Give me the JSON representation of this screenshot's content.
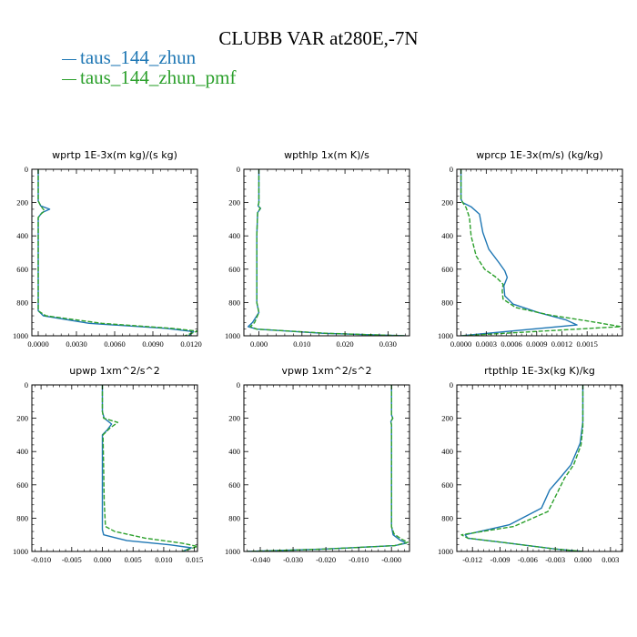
{
  "title": "CLUBB VAR at280E,-7N",
  "legend": [
    {
      "label": "taus_144_zhun",
      "color": "#1f77b4"
    },
    {
      "label": "taus_144_zhun_pmf",
      "color": "#2ca02c"
    }
  ],
  "chart_data": [
    {
      "type": "line",
      "title": "wprtp  1E-3x(m kg)/(s kg)",
      "xlim": [
        -0.0005,
        0.0125
      ],
      "xticks": [
        0.0,
        0.003,
        0.006,
        0.009,
        0.012
      ],
      "xtick_labels": [
        "0.0000",
        "0.0030",
        "0.0060",
        "0.0090",
        "0.0120"
      ],
      "ylim": [
        1000,
        0
      ],
      "yticks": [
        0,
        200,
        400,
        600,
        800,
        1000
      ],
      "series": [
        {
          "name": "taus_144_zhun",
          "x": [
            0.0,
            0.0,
            0.0002,
            0.0009,
            0.0003,
            0.0,
            0.0,
            0.0,
            0.0,
            0.0,
            0.0,
            0.0004,
            0.004,
            0.01,
            0.0122,
            0.0118
          ],
          "y": [
            0,
            190,
            220,
            240,
            260,
            290,
            450,
            560,
            700,
            800,
            850,
            880,
            925,
            955,
            975,
            1000
          ]
        },
        {
          "name": "taus_144_zhun_pmf",
          "x": [
            0.0,
            0.0,
            0.0002,
            0.0005,
            0.0002,
            0.0,
            0.0,
            0.0,
            0.0,
            0.0,
            0.0,
            0.0006,
            0.005,
            0.0105,
            0.0125,
            0.0115
          ],
          "y": [
            0,
            190,
            220,
            250,
            270,
            290,
            450,
            560,
            700,
            800,
            850,
            880,
            925,
            955,
            972,
            1000
          ]
        }
      ]
    },
    {
      "type": "line",
      "title": "wpthlp  1x(m K)/s",
      "xlim": [
        -0.0035,
        0.035
      ],
      "xticks": [
        0.0,
        0.01,
        0.02,
        0.03
      ],
      "xtick_labels": [
        "0.000",
        "0.010",
        "0.020",
        "0.030"
      ],
      "ylim": [
        1000,
        0
      ],
      "yticks": [
        0,
        200,
        400,
        600,
        800,
        1000
      ],
      "series": [
        {
          "name": "taus_144_zhun",
          "x": [
            0.0,
            0.0,
            -0.0002,
            0.0004,
            -0.0003,
            -0.0005,
            -0.0005,
            -0.0005,
            0.0,
            -0.0015,
            -0.0025,
            -0.0005,
            0.015,
            0.034
          ],
          "y": [
            0,
            200,
            220,
            235,
            260,
            400,
            600,
            800,
            860,
            920,
            945,
            960,
            985,
            1000
          ]
        },
        {
          "name": "taus_144_zhun_pmf",
          "x": [
            0.0,
            0.0,
            -0.0002,
            0.0003,
            -0.0003,
            -0.0005,
            -0.0005,
            -0.0005,
            0.0,
            -0.001,
            -0.002,
            -0.0005,
            0.016,
            0.034
          ],
          "y": [
            0,
            200,
            220,
            235,
            260,
            400,
            600,
            800,
            860,
            920,
            945,
            960,
            985,
            1000
          ]
        }
      ]
    },
    {
      "type": "line",
      "title": "wprcp  1E-3x(m/s) (kg/kg)",
      "xlim": [
        -5e-05,
        0.00192
      ],
      "xticks": [
        0.0,
        0.0003,
        0.0006,
        0.0009,
        0.0012,
        0.0015
      ],
      "xtick_labels": [
        "0.0000",
        "0.0003",
        "0.0006",
        "0.0009",
        "0.0012",
        "0.0015"
      ],
      "ylim": [
        1000,
        0
      ],
      "yticks": [
        0,
        200,
        400,
        600,
        800,
        1000
      ],
      "series": [
        {
          "name": "taus_144_zhun",
          "x": [
            0.0,
            0.0,
            2e-05,
            0.00012,
            0.00022,
            0.00026,
            0.00033,
            0.00045,
            0.00052,
            0.00055,
            0.00051,
            0.00052,
            0.00062,
            0.00092,
            0.00125,
            0.00138,
            0.0
          ],
          "y": [
            0,
            180,
            200,
            225,
            270,
            380,
            480,
            560,
            610,
            650,
            700,
            760,
            810,
            860,
            905,
            935,
            1000
          ]
        },
        {
          "name": "taus_144_zhun_pmf",
          "x": [
            0.0,
            0.0,
            2e-05,
            6e-05,
            0.0001,
            0.00012,
            0.00018,
            0.00028,
            0.00042,
            0.0005,
            0.00049,
            0.0005,
            0.00065,
            0.00105,
            0.00155,
            0.0019,
            0.0
          ],
          "y": [
            0,
            180,
            200,
            230,
            290,
            400,
            520,
            600,
            650,
            690,
            730,
            780,
            830,
            875,
            915,
            945,
            1000
          ]
        }
      ]
    },
    {
      "type": "line",
      "title": "upwp  1xm^2/s^2",
      "xlim": [
        -0.0115,
        0.0155
      ],
      "xticks": [
        -0.01,
        -0.005,
        0.0,
        0.005,
        0.01,
        0.015
      ],
      "xtick_labels": [
        "-0.010",
        "-0.005",
        "0.000",
        "0.005",
        "0.010",
        "0.015"
      ],
      "ylim": [
        1000,
        0
      ],
      "yticks": [
        0,
        200,
        400,
        600,
        800,
        1000
      ],
      "series": [
        {
          "name": "taus_144_zhun",
          "x": [
            0.0,
            0.0,
            0.0003,
            0.0015,
            0.0008,
            0.0,
            0.0,
            0.0,
            0.0,
            0.0002,
            0.004,
            0.011,
            0.0145,
            0.013
          ],
          "y": [
            0,
            160,
            200,
            235,
            270,
            300,
            500,
            700,
            870,
            900,
            935,
            960,
            978,
            1000
          ]
        },
        {
          "name": "taus_144_zhun_pmf",
          "x": [
            0.0,
            0.0,
            0.0002,
            0.0025,
            0.0012,
            0.0001,
            0.0002,
            0.0003,
            0.0005,
            0.002,
            0.007,
            0.013,
            0.0155,
            0.013
          ],
          "y": [
            0,
            160,
            200,
            225,
            260,
            300,
            500,
            700,
            850,
            880,
            920,
            950,
            970,
            1000
          ]
        }
      ]
    },
    {
      "type": "line",
      "title": "vpwp  1xm^2/s^2",
      "xlim": [
        -0.045,
        0.0055
      ],
      "xticks": [
        -0.04,
        -0.03,
        -0.02,
        -0.01,
        0.0
      ],
      "xtick_labels": [
        "-0.040",
        "-0.030",
        "-0.020",
        "-0.010",
        "-0.000"
      ],
      "ylim": [
        1000,
        0
      ],
      "yticks": [
        0,
        200,
        400,
        600,
        800,
        1000
      ],
      "series": [
        {
          "name": "taus_144_zhun",
          "x": [
            0.0,
            0.0,
            0.0004,
            -0.0002,
            0.0,
            0.0,
            0.0005,
            0.0025,
            0.0045,
            0.001,
            -0.02,
            -0.044
          ],
          "y": [
            0,
            180,
            200,
            220,
            240,
            850,
            900,
            930,
            950,
            965,
            985,
            1000
          ]
        },
        {
          "name": "taus_144_zhun_pmf",
          "x": [
            0.0,
            0.0,
            0.0004,
            -0.0002,
            0.0,
            0.0,
            0.0008,
            0.003,
            0.005,
            0.001,
            -0.02,
            -0.044
          ],
          "y": [
            0,
            180,
            200,
            220,
            240,
            850,
            895,
            925,
            945,
            965,
            985,
            1000
          ]
        }
      ]
    },
    {
      "type": "line",
      "title": "rtpthlp  1E-3x(kg K)/kg",
      "xlim": [
        -0.0137,
        0.0043
      ],
      "xticks": [
        -0.012,
        -0.009,
        -0.006,
        -0.003,
        0.0,
        0.003
      ],
      "xtick_labels": [
        "-0.012",
        "-0.009",
        "-0.006",
        "-0.003",
        "0.000",
        "0.003"
      ],
      "ylim": [
        1000,
        0
      ],
      "yticks": [
        0,
        200,
        400,
        600,
        800,
        1000
      ],
      "series": [
        {
          "name": "taus_144_zhun",
          "x": [
            0.0,
            0.0,
            -0.0003,
            -0.0013,
            -0.0025,
            -0.0036,
            -0.0045,
            -0.008,
            -0.0128,
            -0.0125,
            -0.008,
            -0.003,
            0.0
          ],
          "y": [
            0,
            220,
            350,
            480,
            560,
            630,
            740,
            840,
            900,
            920,
            950,
            985,
            1000
          ]
        },
        {
          "name": "taus_144_zhun_pmf",
          "x": [
            0.0,
            0.0,
            -0.0002,
            -0.001,
            -0.002,
            -0.0028,
            -0.0038,
            -0.0075,
            -0.0132,
            -0.0125,
            -0.008,
            -0.003,
            0.0
          ],
          "y": [
            0,
            250,
            360,
            480,
            560,
            650,
            760,
            850,
            900,
            920,
            950,
            985,
            1000
          ]
        }
      ]
    }
  ]
}
